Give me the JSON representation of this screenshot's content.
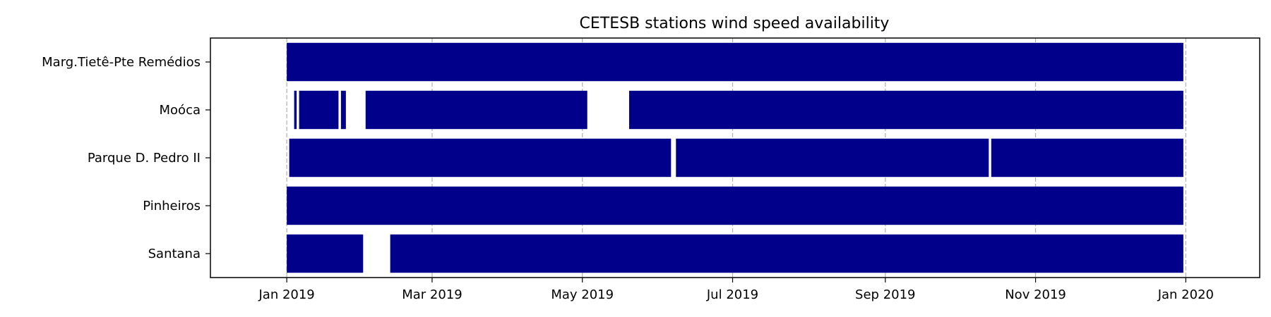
{
  "chart_data": {
    "type": "timeline",
    "title": "CETESB stations wind speed availability",
    "xlabel": "",
    "ylabel": "",
    "bar_color": "#00008b",
    "grid": "x-dashed",
    "xlim": [
      "2018-12-01",
      "2020-01-31"
    ],
    "x_ticks": [
      {
        "date": "2019-01-01",
        "label": "Jan 2019"
      },
      {
        "date": "2019-03-01",
        "label": "Mar 2019"
      },
      {
        "date": "2019-05-01",
        "label": "May 2019"
      },
      {
        "date": "2019-07-01",
        "label": "Jul 2019"
      },
      {
        "date": "2019-09-01",
        "label": "Sep 2019"
      },
      {
        "date": "2019-11-01",
        "label": "Nov 2019"
      },
      {
        "date": "2020-01-01",
        "label": "Jan 2020"
      }
    ],
    "stations": [
      {
        "name": "Marg.Tietê-Pte Remédios",
        "intervals": [
          [
            "2019-01-01",
            "2019-12-31"
          ]
        ]
      },
      {
        "name": "Moóca",
        "intervals": [
          [
            "2019-01-04",
            "2019-01-05"
          ],
          [
            "2019-01-06",
            "2019-01-22"
          ],
          [
            "2019-01-23",
            "2019-01-25"
          ],
          [
            "2019-02-02",
            "2019-05-03"
          ],
          [
            "2019-05-20",
            "2019-12-31"
          ]
        ]
      },
      {
        "name": "Parque D. Pedro II",
        "intervals": [
          [
            "2019-01-02",
            "2019-06-06"
          ],
          [
            "2019-06-08",
            "2019-10-13"
          ],
          [
            "2019-10-14",
            "2019-12-31"
          ]
        ]
      },
      {
        "name": "Pinheiros",
        "intervals": [
          [
            "2019-01-01",
            "2019-12-31"
          ]
        ]
      },
      {
        "name": "Santana",
        "intervals": [
          [
            "2019-01-01",
            "2019-02-01"
          ],
          [
            "2019-02-12",
            "2019-12-31"
          ]
        ]
      }
    ]
  }
}
